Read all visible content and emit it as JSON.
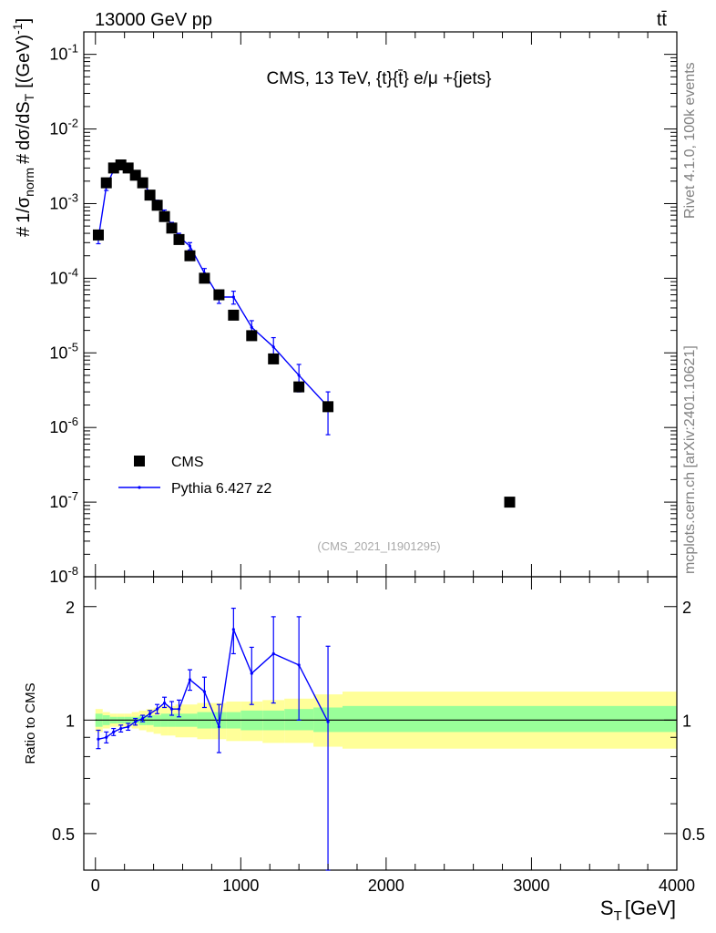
{
  "header": {
    "energy_label": "13000 GeV pp",
    "process_label": "tt̄"
  },
  "plot_title": "CMS, 13 TeV, {t}{t̄} e/μ +{jets}",
  "side_labels": {
    "rivet": "Rivet 4.1.0,  100k events",
    "mcplots": "mcplots.cern.ch [arXiv:2401.10621]"
  },
  "analysis_id": "(CMS_2021_I1901295)",
  "colors": {
    "data": "#000000",
    "mc": "#0000ff",
    "band_inner": "#99ff99",
    "band_outer": "#ffff99"
  },
  "chart_data": [
    {
      "type": "scatter",
      "panel": "main",
      "title": "CMS, 13 TeV, {t}{t̄} e/μ +{jets}",
      "xlabel": "S_T [GeV]",
      "ylabel": "# 1/σ_norm # dσ/dS_T [(GeV)^-1]",
      "xlim": [
        -80,
        4000
      ],
      "ylim": [
        1e-08,
        0.2
      ],
      "yscale": "log",
      "y_tick_labels": [
        "10^-8",
        "10^-7",
        "10^-6",
        "10^-5",
        "10^-4",
        "10^-3",
        "10^-2",
        "10^-1"
      ],
      "legend_position": "lower-left",
      "series": [
        {
          "name": "CMS",
          "marker": "square",
          "x": [
            20,
            75,
            125,
            175,
            225,
            275,
            325,
            375,
            425,
            475,
            525,
            575,
            650,
            750,
            850,
            950,
            1075,
            1225,
            1400,
            1600,
            2850
          ],
          "y": [
            0.00038,
            0.0019,
            0.003,
            0.0033,
            0.003,
            0.0024,
            0.0019,
            0.0013,
            0.00095,
            0.00067,
            0.00047,
            0.00033,
            0.0002,
            0.0001,
            6e-05,
            3.2e-05,
            1.7e-05,
            8.3e-06,
            3.5e-06,
            1.9e-06,
            1e-07
          ]
        },
        {
          "name": "Pythia 6.427 z2",
          "marker": "line",
          "x": [
            20,
            75,
            125,
            175,
            225,
            275,
            325,
            375,
            425,
            475,
            525,
            575,
            650,
            750,
            850,
            950,
            1075,
            1225,
            1400,
            1600
          ],
          "y": [
            0.00034,
            0.0017,
            0.0028,
            0.0032,
            0.003,
            0.0024,
            0.00195,
            0.00138,
            0.00103,
            0.00075,
            0.00051,
            0.00036,
            0.00027,
            0.000117,
            5.6e-05,
            5.6e-05,
            2.2e-05,
            1.2e-05,
            5e-06,
            1.9e-06
          ],
          "y_lo": [
            0.00029,
            0.0015,
            0.0026,
            0.003,
            0.0028,
            0.0022,
            0.0018,
            0.00127,
            0.00095,
            0.00068,
            0.00046,
            0.00032,
            0.00024,
            9.9e-05,
            4.6e-05,
            4.5e-05,
            1.7e-05,
            8e-06,
            3e-06,
            8e-07
          ],
          "y_hi": [
            0.00039,
            0.0019,
            0.003,
            0.0034,
            0.0032,
            0.0026,
            0.0021,
            0.00149,
            0.00111,
            0.00082,
            0.00056,
            0.0004,
            0.0003,
            0.000135,
            6.7e-05,
            6.7e-05,
            2.7e-05,
            1.6e-05,
            7e-06,
            3e-06
          ]
        }
      ]
    },
    {
      "type": "line",
      "panel": "ratio",
      "xlabel": "S_T [GeV]",
      "ylabel": "Ratio to CMS",
      "xlim": [
        -80,
        4000
      ],
      "ylim": [
        0.4,
        2.4
      ],
      "yscale": "log",
      "y_tick_labels": [
        "0.5",
        "1",
        "2"
      ],
      "x_tick_labels": [
        "0",
        "1000",
        "2000",
        "3000",
        "4000"
      ],
      "reference_line": 1,
      "bands": {
        "edges": [
          0,
          50,
          100,
          150,
          200,
          250,
          300,
          350,
          400,
          450,
          500,
          550,
          600,
          700,
          800,
          900,
          1000,
          1150,
          1300,
          1500,
          1700,
          4000
        ],
        "inner_lo": [
          0.96,
          0.97,
          0.98,
          0.98,
          0.98,
          0.98,
          0.97,
          0.97,
          0.96,
          0.96,
          0.96,
          0.96,
          0.96,
          0.95,
          0.95,
          0.95,
          0.94,
          0.94,
          0.94,
          0.93,
          0.93
        ],
        "inner_hi": [
          1.04,
          1.03,
          1.02,
          1.02,
          1.02,
          1.02,
          1.03,
          1.03,
          1.03,
          1.04,
          1.04,
          1.04,
          1.04,
          1.05,
          1.05,
          1.05,
          1.06,
          1.06,
          1.07,
          1.08,
          1.09
        ],
        "outer_lo": [
          0.93,
          0.95,
          0.96,
          0.96,
          0.96,
          0.95,
          0.94,
          0.93,
          0.92,
          0.91,
          0.91,
          0.9,
          0.9,
          0.89,
          0.89,
          0.88,
          0.88,
          0.87,
          0.87,
          0.85,
          0.84
        ],
        "outer_hi": [
          1.07,
          1.05,
          1.04,
          1.04,
          1.04,
          1.05,
          1.06,
          1.07,
          1.08,
          1.09,
          1.09,
          1.1,
          1.1,
          1.11,
          1.11,
          1.12,
          1.12,
          1.13,
          1.14,
          1.17,
          1.19
        ]
      },
      "series": [
        {
          "name": "Pythia 6.427 z2",
          "x": [
            20,
            75,
            125,
            175,
            225,
            275,
            325,
            375,
            425,
            475,
            525,
            575,
            650,
            750,
            850,
            950,
            1075,
            1225,
            1400,
            1600
          ],
          "y": [
            0.89,
            0.9,
            0.93,
            0.95,
            0.96,
            0.99,
            1.01,
            1.04,
            1.07,
            1.11,
            1.07,
            1.07,
            1.28,
            1.19,
            0.96,
            1.74,
            1.33,
            1.5,
            1.4,
            0.99
          ],
          "y_lo": [
            0.84,
            0.87,
            0.91,
            0.93,
            0.94,
            0.97,
            0.99,
            1.02,
            1.04,
            1.08,
            1.03,
            1.02,
            1.2,
            1.08,
            0.82,
            1.5,
            1.1,
            1.11,
            1.0,
            0.4
          ],
          "y_hi": [
            0.94,
            0.93,
            0.95,
            0.97,
            0.98,
            1.01,
            1.03,
            1.06,
            1.1,
            1.15,
            1.12,
            1.13,
            1.36,
            1.3,
            1.1,
            1.98,
            1.56,
            1.88,
            1.88,
            1.57
          ]
        }
      ]
    }
  ]
}
